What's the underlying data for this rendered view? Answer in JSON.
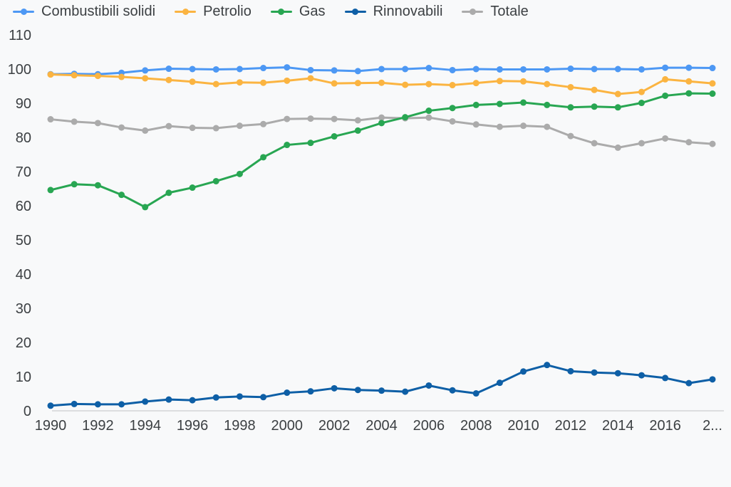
{
  "page": {
    "background_color": "#f8f9fa",
    "text_color": "#3c4043",
    "axis_line_color": "#dcdddf"
  },
  "chart_data": {
    "type": "line",
    "title": "",
    "xlabel": "",
    "ylabel": "",
    "ylim": [
      0,
      110
    ],
    "y_ticks": [
      110,
      100,
      90,
      80,
      70,
      60,
      50,
      40,
      30,
      20,
      10,
      0
    ],
    "grid": "off",
    "legend_position": "top-left",
    "x_years": [
      1990,
      1991,
      1992,
      1993,
      1994,
      1995,
      1996,
      1997,
      1998,
      1999,
      2000,
      2001,
      2002,
      2003,
      2004,
      2005,
      2006,
      2007,
      2008,
      2009,
      2010,
      2011,
      2012,
      2013,
      2014,
      2015,
      2016,
      2017,
      2018
    ],
    "x_tick_labels": [
      "1990",
      "1992",
      "1994",
      "1996",
      "1998",
      "2000",
      "2002",
      "2004",
      "2006",
      "2008",
      "2010",
      "2012",
      "2014",
      "2016",
      "2..."
    ],
    "series": [
      {
        "name": "Combustibili solidi",
        "color": "#4d98f4",
        "values": [
          98.5,
          98.6,
          98.5,
          98.9,
          99.6,
          100.1,
          100.0,
          99.9,
          100.0,
          100.3,
          100.5,
          99.7,
          99.6,
          99.4,
          100.0,
          100.0,
          100.3,
          99.7,
          100.0,
          99.9,
          99.9,
          99.9,
          100.1,
          100.0,
          100.0,
          99.9,
          100.4,
          100.4,
          100.3
        ]
      },
      {
        "name": "Petrolio",
        "color": "#fbb441",
        "values": [
          98.4,
          98.2,
          98.0,
          97.7,
          97.3,
          96.8,
          96.3,
          95.6,
          96.1,
          96.0,
          96.6,
          97.3,
          95.8,
          95.9,
          96.0,
          95.4,
          95.6,
          95.3,
          95.9,
          96.5,
          96.4,
          95.6,
          94.7,
          93.9,
          92.7,
          93.3,
          97.0,
          96.4,
          95.8
        ]
      },
      {
        "name": "Gas",
        "color": "#28a652",
        "values": [
          64.6,
          66.3,
          66.0,
          63.2,
          59.6,
          63.8,
          65.3,
          67.2,
          69.3,
          74.2,
          77.8,
          78.4,
          80.3,
          82.0,
          84.2,
          85.9,
          87.8,
          88.6,
          89.5,
          89.8,
          90.2,
          89.5,
          88.8,
          89.0,
          88.8,
          90.1,
          92.2,
          92.9,
          92.8
        ]
      },
      {
        "name": "Rinnovabili",
        "color": "#0e5fa6",
        "values": [
          1.5,
          2.0,
          1.9,
          1.9,
          2.7,
          3.3,
          3.1,
          3.9,
          4.2,
          4.0,
          5.3,
          5.7,
          6.6,
          6.1,
          5.9,
          5.6,
          7.4,
          6.0,
          5.1,
          8.2,
          11.5,
          13.4,
          11.6,
          11.2,
          11.0,
          10.4,
          9.6,
          8.1,
          9.2
        ]
      },
      {
        "name": "Totale",
        "color": "#ababab",
        "values": [
          85.3,
          84.6,
          84.2,
          82.9,
          82.0,
          83.3,
          82.8,
          82.7,
          83.4,
          83.9,
          85.4,
          85.5,
          85.4,
          85.0,
          85.8,
          85.6,
          85.8,
          84.7,
          83.8,
          83.1,
          83.4,
          83.1,
          80.4,
          78.3,
          77.0,
          78.3,
          79.7,
          78.6,
          78.1
        ]
      }
    ]
  }
}
